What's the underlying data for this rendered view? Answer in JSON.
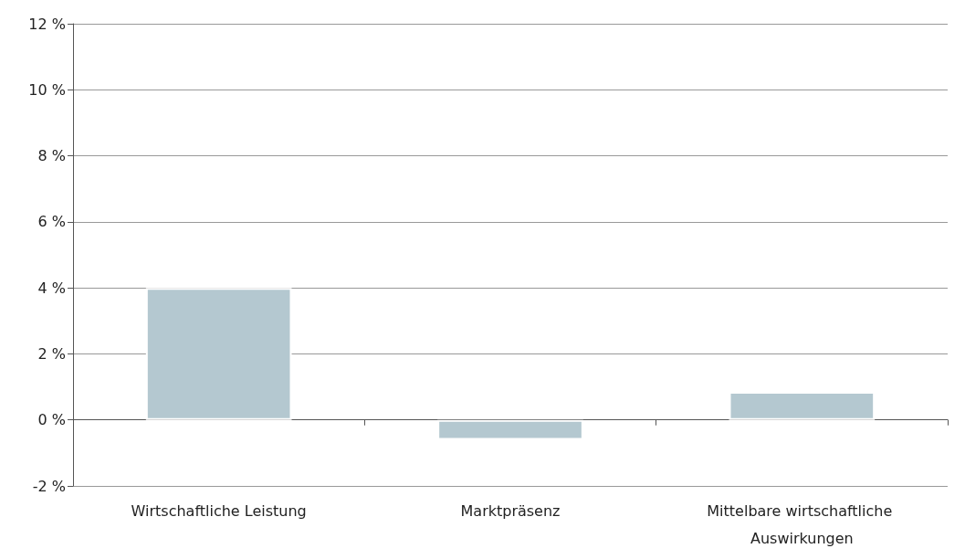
{
  "chart_data": {
    "type": "bar",
    "categories": [
      "Wirtschaftliche Leistung",
      "Marktpräsenz",
      "Mittelbare wirtschaftliche Auswirkungen"
    ],
    "values": [
      4.0,
      -0.6,
      0.85
    ],
    "color": "#b4c8d0",
    "ylim": [
      -2,
      12
    ],
    "yticks": [
      {
        "value": -2,
        "label": "-2 %"
      },
      {
        "value": 0,
        "label": "0 %"
      },
      {
        "value": 2,
        "label": "2 %"
      },
      {
        "value": 4,
        "label": "4 %"
      },
      {
        "value": 6,
        "label": "6 %"
      },
      {
        "value": 8,
        "label": "8 %"
      },
      {
        "value": 10,
        "label": "10 %"
      },
      {
        "value": 12,
        "label": "12 %"
      }
    ],
    "grid": "y"
  }
}
